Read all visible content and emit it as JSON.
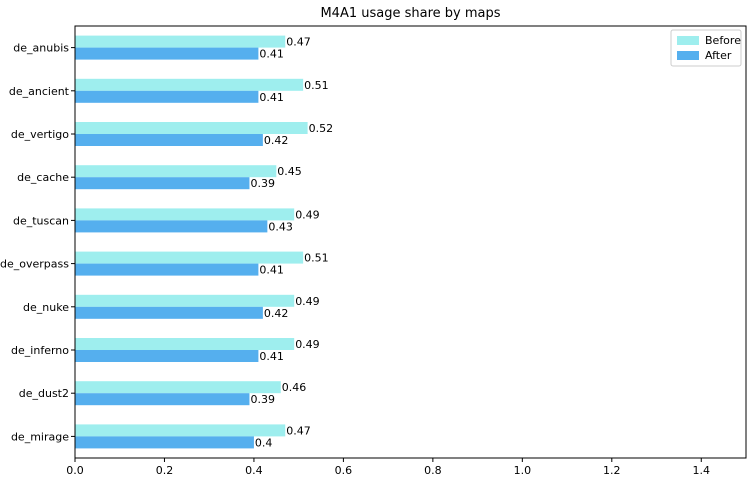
{
  "chart_data": {
    "type": "bar",
    "orientation": "horizontal",
    "title": "M4A1 usage share by maps",
    "xlabel": "",
    "ylabel": "",
    "categories": [
      "de_anubis",
      "de_ancient",
      "de_vertigo",
      "de_cache",
      "de_tuscan",
      "de_overpass",
      "de_nuke",
      "de_inferno",
      "de_dust2",
      "de_mirage"
    ],
    "series": [
      {
        "name": "Before",
        "color": "#9eeeee",
        "values": [
          0.47,
          0.51,
          0.52,
          0.45,
          0.49,
          0.51,
          0.49,
          0.49,
          0.46,
          0.47
        ]
      },
      {
        "name": "After",
        "color": "#55afee",
        "values": [
          0.41,
          0.41,
          0.42,
          0.39,
          0.43,
          0.41,
          0.42,
          0.41,
          0.39,
          0.4
        ]
      }
    ],
    "xlim": [
      0,
      1.5
    ],
    "xticks": [
      0,
      0.2,
      0.4,
      0.6,
      0.8,
      1.0,
      1.2,
      1.4
    ],
    "xtick_labels": [
      "0.0",
      "0.2",
      "0.4",
      "0.6",
      "0.8",
      "1.0",
      "1.2",
      "1.4"
    ],
    "data_labels_shown": true,
    "grid": false,
    "legend": {
      "placement": "top-right",
      "entries": [
        "Before",
        "After"
      ]
    }
  }
}
